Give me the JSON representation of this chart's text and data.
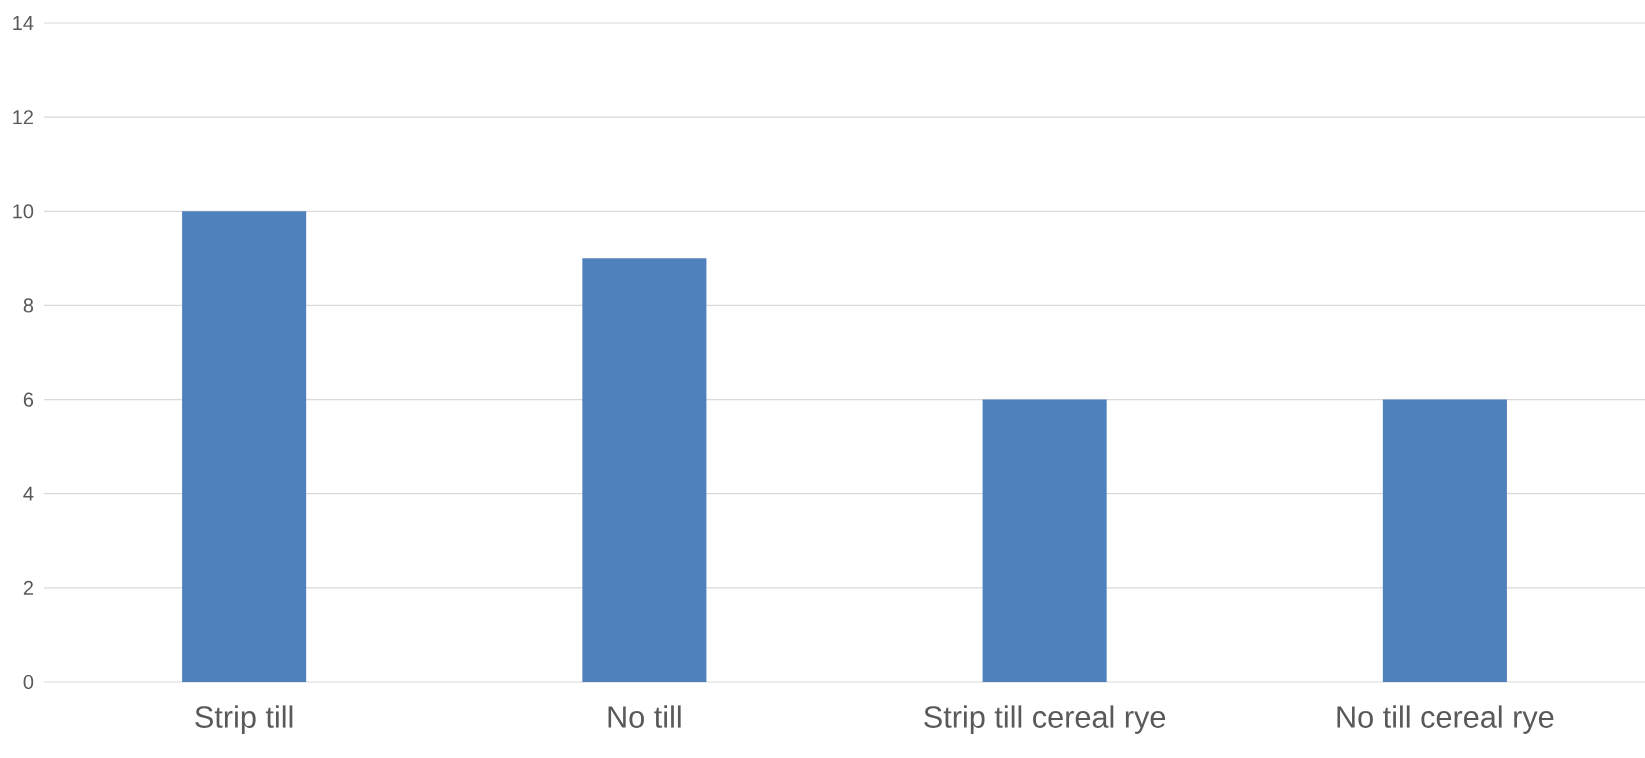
{
  "chart_data": {
    "type": "bar",
    "categories": [
      "Strip till",
      "No till",
      "Strip till cereal rye",
      "No till cereal rye"
    ],
    "values": [
      10,
      9,
      6,
      6
    ],
    "color": "#4f81bd",
    "ylim": [
      0,
      14
    ],
    "yticks": [
      0,
      2,
      4,
      6,
      8,
      10,
      12,
      14
    ],
    "grid": "y"
  }
}
